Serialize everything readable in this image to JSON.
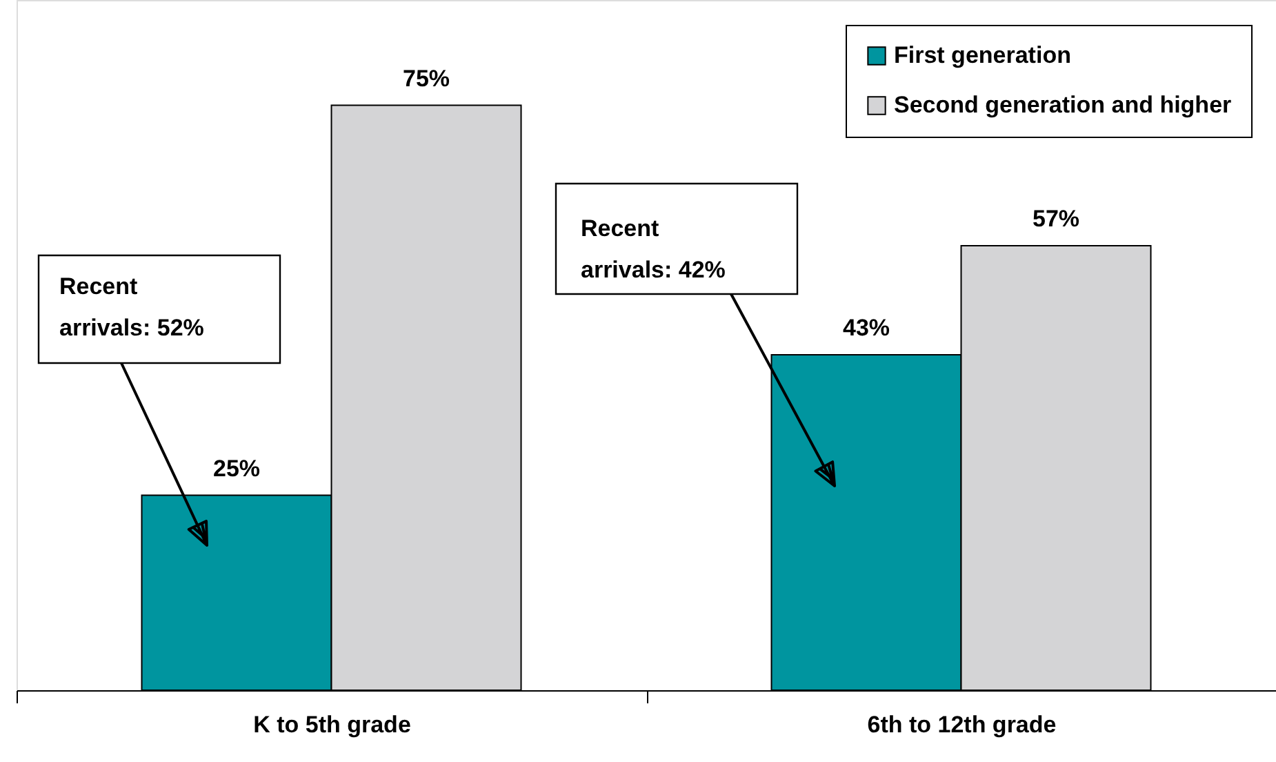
{
  "chart_data": {
    "type": "bar",
    "categories": [
      "K to 5th grade",
      "6th to 12th grade"
    ],
    "series": [
      {
        "name": "First generation",
        "color": "#00959f",
        "values": [
          25,
          43
        ],
        "value_labels": [
          "25%",
          "43%"
        ]
      },
      {
        "name": "Second generation and higher",
        "color": "#d4d4d6",
        "values": [
          75,
          57
        ],
        "value_labels": [
          "75%",
          "57%"
        ]
      }
    ],
    "legend": "top right",
    "annotations": [
      "Recent arrivals: 52%",
      "Recent arrivals: 42%"
    ]
  }
}
